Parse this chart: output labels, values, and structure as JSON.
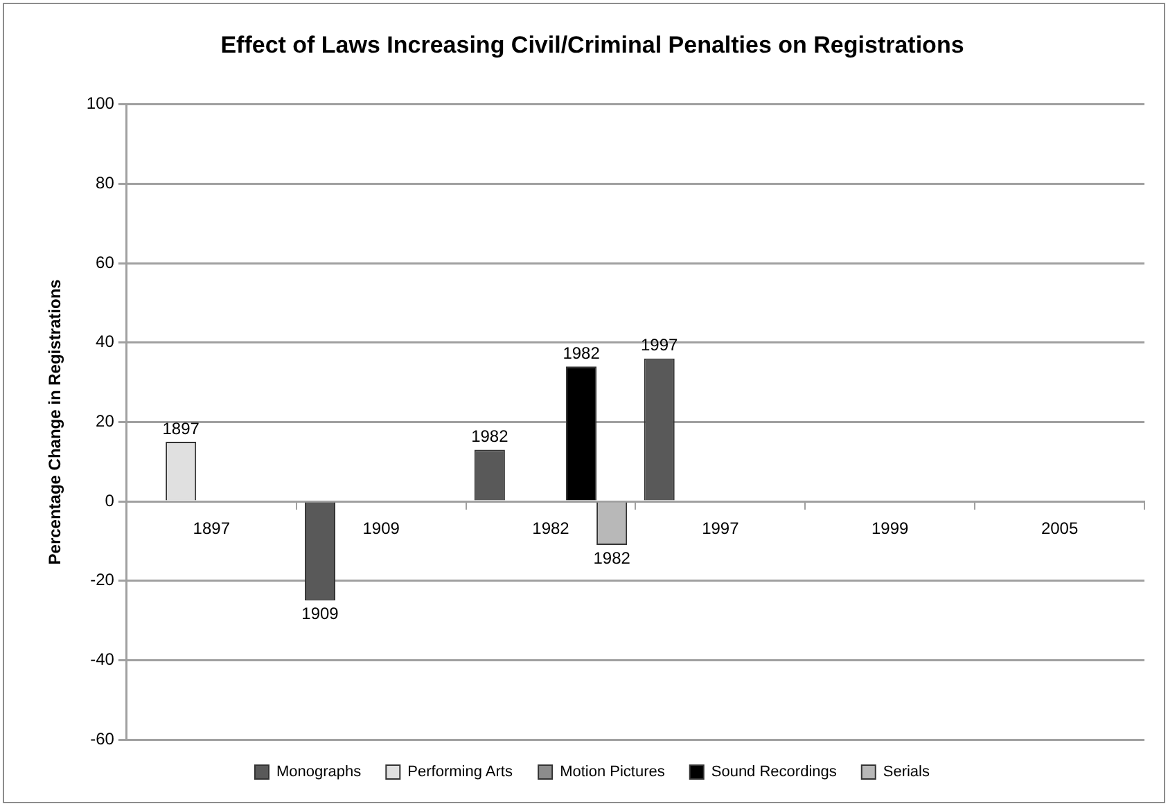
{
  "chart_data": {
    "type": "bar",
    "title": "Effect of Laws Increasing Civil/Criminal Penalties on Registrations",
    "ylabel": "Percentage Change in Registrations",
    "categories": [
      "1897",
      "1909",
      "1982",
      "1997",
      "1999",
      "2005"
    ],
    "series": [
      {
        "name": "Monographs",
        "color": "#595959",
        "values": [
          null,
          -25,
          13,
          36,
          null,
          null
        ]
      },
      {
        "name": "Performing Arts",
        "color": "#e0e0e0",
        "values": [
          15,
          null,
          null,
          null,
          null,
          null
        ]
      },
      {
        "name": "Motion Pictures",
        "color": "#8c8c8c",
        "values": [
          null,
          null,
          null,
          null,
          null,
          null
        ]
      },
      {
        "name": "Sound Recordings",
        "color": "#000000",
        "values": [
          null,
          null,
          34,
          null,
          null,
          null
        ]
      },
      {
        "name": "Serials",
        "color": "#b8b8b8",
        "values": [
          null,
          null,
          -11,
          null,
          null,
          null
        ]
      }
    ],
    "annotations": [
      "1897",
      "1909",
      "1982",
      "1982",
      "1982",
      "1997"
    ],
    "ylim": [
      -60,
      100
    ],
    "yticks": [
      -60,
      -40,
      -20,
      0,
      20,
      40,
      60,
      80,
      100
    ],
    "grid": "y",
    "legend": "bottom"
  }
}
